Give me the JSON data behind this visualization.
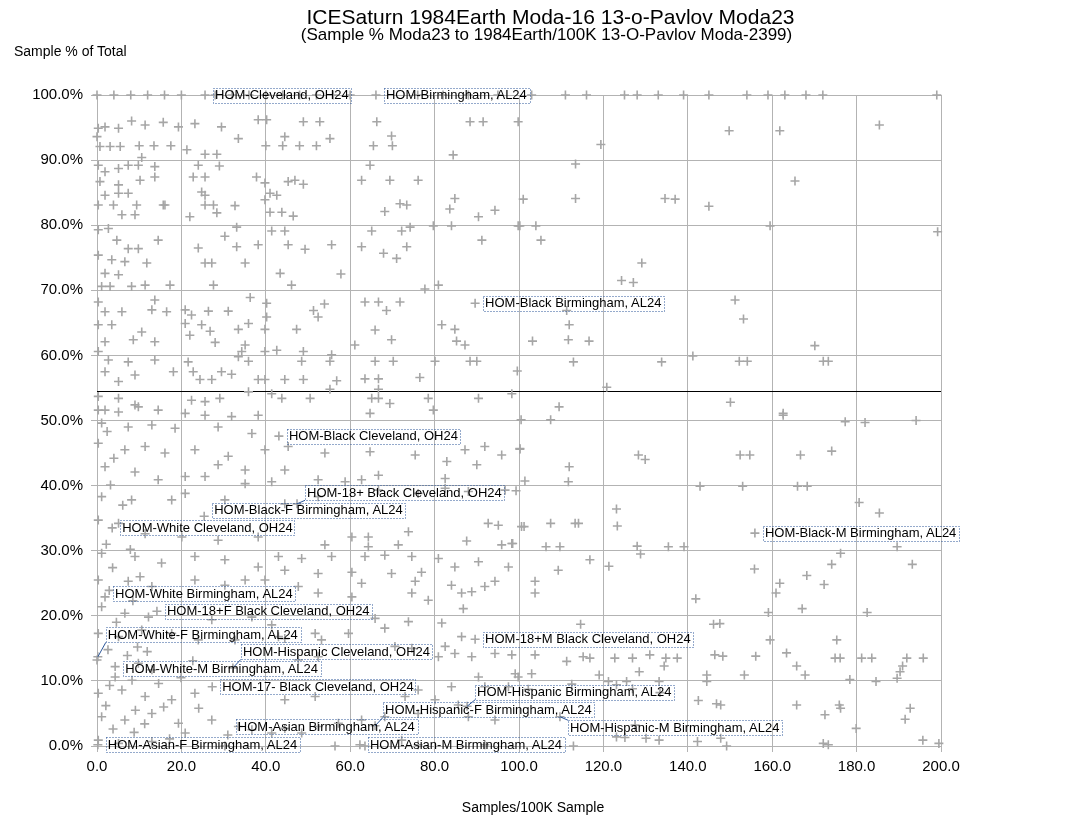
{
  "chart_data": {
    "type": "scatter",
    "title": "ICESaturn 1984Earth Moda-16 13-o-Pavlov Moda23",
    "subtitle": "(Sample % Moda23 to 1984Earth/100K 13-O-Pavlov Moda-2399)",
    "xlabel": "Samples/100K Sample",
    "ylabel": "Sample % of Total",
    "xlim": [
      0,
      200
    ],
    "ylim": [
      0,
      100
    ],
    "xticks": [
      {
        "value": 0,
        "label": "0.0"
      },
      {
        "value": 20,
        "label": "20.0"
      },
      {
        "value": 40,
        "label": "40.0"
      },
      {
        "value": 60,
        "label": "60.0"
      },
      {
        "value": 80,
        "label": "80.0"
      },
      {
        "value": 100,
        "label": "100.0"
      },
      {
        "value": 120,
        "label": "120.0"
      },
      {
        "value": 140,
        "label": "140.0"
      },
      {
        "value": 160,
        "label": "160.0"
      },
      {
        "value": 180,
        "label": "180.0"
      },
      {
        "value": 200,
        "label": "200.0"
      }
    ],
    "yticks": [
      {
        "value": 0,
        "label": "0.0%"
      },
      {
        "value": 10,
        "label": "10.0%"
      },
      {
        "value": 20,
        "label": "20.0%"
      },
      {
        "value": 30,
        "label": "30.0%"
      },
      {
        "value": 40,
        "label": "40.0%"
      },
      {
        "value": 50,
        "label": "50.0%"
      },
      {
        "value": 60,
        "label": "60.0%"
      },
      {
        "value": 70,
        "label": "70.0%"
      },
      {
        "value": 80,
        "label": "80.0%"
      },
      {
        "value": 90,
        "label": "90.0%"
      },
      {
        "value": 100,
        "label": "100.0%"
      }
    ],
    "grid": true,
    "marker": "cross",
    "color": "#a6a6a6",
    "ref_lines": [
      {
        "axis": "y",
        "value": 54.5,
        "color": "#000000"
      }
    ],
    "annotations": [
      {
        "text": "HOM-Cleveland, OH24",
        "x": 25.6,
        "y": 100
      },
      {
        "text": "HOM-Birmingham, AL24",
        "x": 66.1,
        "y": 100
      },
      {
        "text": "HOM-Black Birmingham, AL24",
        "x": 89.6,
        "y": 68.0
      },
      {
        "text": "HOM-Black Cleveland, OH24",
        "x": 43.1,
        "y": 47.6
      },
      {
        "text": "HOM-18+ Black Cleveland, OH24",
        "x": 47.4,
        "y": 37.2
      },
      {
        "text": "HOM-Black-F Birmingham, AL24",
        "x": 25.4,
        "y": 35.3
      },
      {
        "text": "HOM-White Cleveland, OH24",
        "x": 3.6,
        "y": 33.5
      },
      {
        "text": "HOM-Black-M Birmingham, AL24",
        "x": 155.9,
        "y": 32.7
      },
      {
        "text": "HOM-White Birmingham, AL24",
        "x": 1.9,
        "y": 22.9
      },
      {
        "text": "HOM-18+F Black Cleveland, OH24",
        "x": 14.2,
        "y": 20.7
      },
      {
        "text": "HOM-18+M Black Cleveland, OH24",
        "x": 89.6,
        "y": 16.4
      },
      {
        "text": "HOM-White-F Birmingham, AL24",
        "x": 0.2,
        "y": 13.7
      },
      {
        "text": "HOM-Hispanic Cleveland, OH24",
        "x": 32.2,
        "y": 12.0
      },
      {
        "text": "HOM-White-M Birmingham, AL24",
        "x": 4.3,
        "y": 10.6
      },
      {
        "text": "HOM-17- Black Cleveland, OH24",
        "x": 27.3,
        "y": 9.1
      },
      {
        "text": "HOM-Hispanic Birmingham, AL24",
        "x": 87.7,
        "y": 6.1
      },
      {
        "text": "HOM-Hispanic-M Birmingham, AL24",
        "x": 109.7,
        "y": 4.5
      },
      {
        "text": "HOM-Hispanic-F Birmingham, AL24",
        "x": 65.9,
        "y": 3.1
      },
      {
        "text": "HOM-Asian Birmingham, AL24",
        "x": 31.0,
        "y": 1.7
      },
      {
        "text": "HOM-Asian-F Birmingham, AL24",
        "x": 0.2,
        "y": 0.2
      },
      {
        "text": "HOM-Asian-M Birmingham, AL24",
        "x": 62.3,
        "y": 0.2
      }
    ],
    "x": [
      0,
      4,
      8,
      12,
      16,
      20,
      25.6,
      28,
      32,
      36,
      40,
      44,
      48,
      52,
      56,
      60,
      66.1,
      76,
      82,
      88,
      95,
      103,
      111,
      116,
      125,
      128,
      133,
      139,
      145,
      154,
      159,
      163,
      168,
      172,
      199,
      8.2,
      11.4,
      15.7,
      23.2,
      29.5,
      38.2,
      40.2,
      48.9,
      52.8,
      66.3,
      88.4,
      91.5,
      33.5,
      44.5,
      69.8,
      55.2,
      40.0,
      44.0,
      48.0,
      52.0,
      65.5,
      70.0,
      21.3,
      25.6,
      28.4,
      84.4,
      10.6,
      19.3,
      24.0,
      29.0,
      22.8,
      25.6,
      37.8,
      45.3,
      46.9,
      48.9,
      39.8,
      24.8,
      25.6,
      41.0,
      42.6,
      39.8,
      15.7,
      25.6,
      27.6,
      32.7,
      41.0,
      43.8,
      46.5,
      28.4,
      22.0,
      33.1,
      41.4,
      44.5,
      30.3,
      24.0,
      33.1,
      38.2,
      45.3,
      49.3,
      55.6,
      25.6,
      27.2,
      35.1,
      43.4,
      57.8,
      27.6,
      46.1,
      20.9,
      22.4,
      26.4,
      31.1,
      36.3,
      40.2,
      40.2,
      51.3,
      52.4,
      53.9,
      20.9,
      24.8,
      26.8,
      33.5,
      35.9,
      39.8,
      47.3,
      22.0,
      28.0,
      35.1,
      34.3,
      39.8,
      42.6,
      48.9,
      55.6,
      21.6,
      33.5,
      35.9,
      48.5,
      55.2,
      18.1,
      22.8,
      29.5,
      31.9,
      38.2,
      39.8,
      44.5,
      48.9,
      56.8,
      24.4,
      27.2,
      55.2,
      65.1,
      78.5,
      90.4,
      98.3,
      22.4,
      25.6,
      29.1,
      35.9,
      41.4,
      43.8,
      50.5,
      64.7,
      66.7,
      69.4,
      79.7,
      62.7,
      69.4,
      76.1,
      64.7,
      68.2,
      71.8,
      73.4,
      84.8,
      83.6,
      90.4,
      94.3,
      65.1,
      72.2,
      74.2,
      79.7,
      84.0,
      99.8,
      62.7,
      67.9,
      71.0,
      73.4,
      91.2,
      77.7,
      80.9,
      63.5,
      66.7,
      71.8,
      68.6,
      65.9,
      69.8,
      61.1,
      81.7,
      84.8,
      85.2,
      87.2,
      65.9,
      70.2,
      76.5,
      80.1,
      88.4,
      90.0,
      63.5,
      66.7,
      66.7,
      89.6,
      0.3,
      1.9,
      5.1,
      0,
      0.7,
      3.1,
      5.5,
      0.3,
      1.9,
      5.1,
      7.4,
      9.8,
      13.7,
      13.7,
      10.2,
      5.1,
      0.7,
      1.9,
      5.1,
      7.4,
      0.3,
      3.9,
      9.4,
      5.9,
      9.0,
      16.1,
      0.3,
      2.7,
      4.7,
      7.4,
      9.8,
      14.5,
      0.3,
      3.5,
      6.6,
      11.8,
      1.9,
      5.1,
      1.1,
      3.1,
      8.2,
      11.4,
      17.3,
      0.3,
      1.9,
      5.9,
      13.7,
      13.0,
      16.5,
      0.3,
      3.5,
      10.6,
      8.6,
      13.7,
      1.9,
      0.3,
      2.7,
      7.4,
      13.7,
      1.9,
      5.1,
      9.0,
      0.3,
      5.1,
      1.9,
      9.0,
      10.0,
      13.5,
      17.5,
      99.8,
      119.4,
      149.8,
      161.8,
      185.4,
      113.4,
      165.4,
      101.0,
      113.4,
      134.6,
      137.0,
      145.0,
      100.2,
      104.0,
      105.2,
      159.5,
      199.2,
      129.1,
      124.3,
      127.1,
      151.2,
      153.2,
      170.1,
      111.3,
      111.9,
      103.2,
      111.7,
      116.6,
      112.9,
      133.8,
      141.2,
      152.2,
      154.1,
      172.1,
      173.3,
      99.6,
      120.8,
      109.5,
      150.1,
      162.6,
      45.3,
      54.0,
      64.7,
      75.4,
      82.9,
      87.2,
      90.0,
      91.9,
      95.9,
      100.2,
      35.1,
      44.5,
      52.4,
      58.8,
      62.7,
      66.7,
      82.5,
      28.7,
      20.9,
      52.4,
      66.7,
      76.1,
      82.5,
      88.0,
      96.7,
      92.7,
      95.1,
      100.6,
      73.8,
      60.4,
      64.3,
      87.6,
      54.0,
      64.3,
      71.4,
      95.9,
      98.3,
      48.5,
      55.6,
      63.5,
      68.2,
      74.6,
      80.9,
      84.8,
      90.4,
      97.5,
      44.5,
      52.4,
      60.4,
      69.8,
      76.9,
      35.1,
      47.7,
      62.7,
      75.4,
      84.0,
      94.3,
      91.9,
      88.8,
      86.4,
      52.4,
      60.4,
      74.6,
      78.5,
      86.8,
      65.9,
      73.8,
      81.7,
      68.2,
      59.6,
      51.7,
      53.2,
      44.5,
      86.4,
      82.5,
      84.8,
      74.6,
      70.6,
      80.9,
      88.8,
      94.3,
      98.3,
      90.4,
      99.8,
      84.0,
      91.9,
      97.5,
      76.1,
      73.0,
      80.1,
      85.6,
      88.0,
      94.3,
      76.1,
      68.2,
      62.7,
      57.2,
      52.4,
      44.5,
      36.7,
      63.5,
      72.2,
      76.1,
      91.9,
      89.6,
      87.7,
      65.9,
      62.3,
      31.0,
      0.2,
      0.2,
      32.2,
      4.3,
      27.3,
      14.2,
      1.9,
      3.6,
      25.4,
      47.4,
      43.1,
      155.9,
      109.7,
      0.3,
      5.1,
      9.8,
      14.5,
      20.9,
      25.6,
      31.9,
      38.2,
      1.1,
      7.4,
      13.0,
      18.5,
      28.7,
      36.7,
      0.3,
      6.6,
      11.4,
      16.1,
      23.2,
      31.1,
      39.8,
      1.9,
      9.0,
      14.5,
      25.6,
      35.1,
      41.4,
      1.1,
      8.2,
      17.7,
      20.9,
      30.3,
      44.5,
      0.3,
      5.1,
      11.4,
      20.1,
      28.7,
      38.2,
      1.1,
      9.0,
      15.3,
      23.2,
      30.3,
      38.2,
      43.0,
      0.3,
      7.4,
      13.0,
      23.2,
      30.3,
      39.8,
      1.1,
      6.6,
      12.2,
      27.2,
      36.7,
      41.4,
      0.3,
      5.1,
      10.6,
      17.7,
      24.0,
      32.7,
      43.0,
      0,
      4.3,
      9.8,
      13.0,
      47.7,
      52.4,
      0.3,
      5.9,
      11.4,
      17.7,
      23.2,
      44.5,
      51.7,
      1.1,
      6.6,
      13.0,
      19.3,
      27.2,
      33.5,
      0.3,
      5.1,
      13.0,
      20.9,
      30.3,
      41.4,
      48.5,
      56.4,
      2.4,
      4.0,
      3.2,
      6.1,
      2.2,
      7.9,
      3.7,
      10.2,
      2.9,
      8.5,
      4.6,
      9.6,
      2.6,
      7.2,
      11.9,
      3.0,
      8.3,
      14.6,
      2.1,
      9.1,
      15.8,
      3.8,
      8.8,
      11.3,
      17.2,
      24.1,
      19.9,
      22.7,
      107.5,
      100.5,
      162.6,
      177.3,
      182.0,
      194.1,
      100.2,
      128.3,
      129.9,
      152.4,
      154.7,
      166.7,
      174.1,
      111.9,
      101.4,
      111.7,
      142.9,
      153.0,
      166.0,
      168.3,
      99.3,
      180.6,
      185.4,
      123.1,
      123.3,
      101.2,
      107.5,
      113.3,
      114.1,
      98.5,
      106.4,
      109.7,
      128.0,
      128.8,
      135.4,
      139.1,
      189.6,
      176.2,
      116.8,
      121.3,
      109.3,
      155.8,
      174.1,
      193.2,
      168.2,
      103.8,
      103.8,
      161.8,
      160.9,
      172.3,
      141.9,
      167.1,
      159.1,
      182.5,
      114.6,
      146.1,
      147.6,
      159.5,
      175.3,
      103.8,
      111.3,
      115.2,
      116.8,
      122.7,
      126.9,
      131.0,
      134.8,
      137.5,
      146.4,
      148.3,
      156.1,
      163.4,
      174.9,
      176.1,
      181.2,
      183.6,
      191.9,
      195.8,
      165.8,
      167.8,
      190.9,
      190.3,
      189.6,
      134.4,
      99.1,
      103.0,
      119.0,
      128.5,
      144.5,
      144.5,
      153.4,
      178.4,
      184.6,
      102.2,
      112.5,
      121.2,
      123.1,
      125.5,
      126.9,
      133.4,
      133.2,
      142.5,
      146.8,
      147.8,
      165.8,
      175.9,
      176.2,
      192.7,
      191.5,
      172.5,
      127.5,
      179.9,
      123.1,
      125.1,
      130.1,
      133.2,
      142.3,
      147.8,
      149.2,
      172.1,
      173.3,
      195.7,
      199.5,
      112.9
    ],
    "values": [
      100,
      100,
      100,
      100,
      100,
      100,
      100,
      100,
      100,
      100,
      100,
      100,
      100,
      100,
      100,
      100,
      100,
      100,
      100,
      100,
      100,
      100,
      100,
      100,
      100,
      100,
      100,
      100,
      100,
      100,
      100,
      100,
      100,
      100,
      100,
      96.0,
      95.4,
      95.8,
      95.6,
      95.1,
      96.2,
      96.2,
      95.9,
      95.9,
      95.9,
      95.9,
      95.9,
      93.3,
      93.6,
      93.7,
      93.3,
      92.2,
      92.2,
      92.2,
      92.2,
      92.2,
      92.2,
      91.6,
      90.9,
      90.9,
      90.8,
      90.4,
      95.1,
      89.2,
      89.1,
      87.4,
      87.4,
      87.4,
      86.7,
      86.9,
      86.3,
      86.5,
      85.1,
      84.6,
      84.9,
      84.6,
      83.9,
      83.1,
      83.1,
      83.1,
      83.0,
      82.0,
      82.0,
      81.4,
      81.9,
      81.3,
      79.7,
      79.1,
      79.1,
      78.3,
      76.5,
      76.7,
      77.0,
      77.0,
      76.3,
      77.0,
      74.2,
      74.2,
      74.2,
      72.6,
      72.5,
      70.8,
      70.8,
      67.0,
      66.2,
      66.8,
      66.8,
      68.9,
      68.0,
      65.9,
      66.9,
      65.9,
      67.9,
      64.9,
      64.7,
      63.7,
      64.0,
      64.9,
      64.0,
      64.0,
      63.1,
      62.0,
      61.6,
      60.6,
      60.6,
      60.8,
      60.6,
      60.1,
      59.0,
      59.8,
      59.1,
      59.1,
      59.1,
      57.5,
      57.5,
      57.5,
      57.1,
      56.3,
      56.3,
      56.3,
      56.3,
      56.1,
      56.3,
      56.3,
      54.8,
      53.4,
      53.4,
      53.4,
      54.1,
      53.1,
      52.9,
      53.4,
      54.4,
      54.1,
      53.4,
      53.4,
      51.1,
      53.4,
      52.6,
      51.6,
      86.9,
      86.9,
      86.9,
      89.2,
      82.1,
      83.3,
      83.1,
      84.1,
      82.5,
      81.3,
      82.3,
      79.1,
      79.1,
      79.7,
      79.9,
      79.9,
      79.9,
      76.7,
      75.7,
      74.9,
      76.7,
      77.7,
      70.2,
      70.8,
      68.2,
      68.2,
      68.2,
      66.9,
      63.9,
      62.4,
      61.6,
      64.7,
      64.0,
      62.2,
      61.6,
      59.1,
      59.1,
      56.6,
      59.1,
      59.1,
      59.1,
      56.4,
      56.4,
      54.8,
      68.0,
      94.9,
      95.1,
      94.9,
      93.6,
      92.1,
      92.1,
      92.1,
      89.2,
      88.2,
      88.7,
      89.2,
      89.2,
      89.0,
      87.4,
      86.9,
      86.2,
      86.7,
      84.6,
      84.9,
      84.9,
      83.1,
      83.1,
      83.1,
      81.6,
      81.6,
      83.1,
      79.3,
      79.5,
      77.7,
      76.4,
      76.4,
      77.7,
      75.4,
      74.7,
      74.4,
      74.2,
      72.6,
      72.4,
      70.6,
      70.6,
      70.6,
      70.8,
      70.8,
      68.2,
      66.7,
      66.7,
      68.5,
      67.0,
      66.7,
      64.7,
      64.7,
      63.6,
      62.4,
      62.1,
      62.1,
      60.6,
      59.3,
      59.0,
      59.3,
      57.5,
      56.0,
      57.0,
      53.7,
      53.4,
      51.6,
      52.4,
      92.2,
      92.2,
      92.2,
      95.9,
      92.4,
      94.5,
      94.5,
      95.4,
      89.4,
      86.8,
      84.0,
      84.1,
      84.1,
      84.0,
      82.9,
      79.9,
      79.9,
      77.7,
      79.9,
      79.0,
      74.2,
      71.5,
      71.2,
      68.5,
      65.6,
      61.5,
      66.9,
      64.7,
      62.2,
      62.4,
      62.2,
      59.0,
      59.0,
      59.9,
      59.1,
      59.1,
      59.1,
      59.1,
      57.6,
      55.1,
      52.1,
      52.8,
      51.1,
      46.0,
      45.0,
      45.2,
      44.7,
      43.7,
      45.5,
      43.2,
      46.0,
      44.7,
      45.7,
      42.4,
      42.4,
      40.9,
      40.6,
      40.9,
      41.6,
      41.1,
      43.2,
      41.4,
      38.3,
      39.3,
      38.8,
      39.6,
      39.1,
      39.3,
      34.2,
      33.9,
      33.7,
      32.9,
      32.1,
      32.1,
      31.5,
      30.9,
      30.6,
      30.9,
      30.9,
      31.1,
      28.8,
      29.1,
      29.1,
      29.3,
      29.1,
      28.8,
      27.5,
      28.3,
      27.5,
      27.0,
      26.5,
      26.7,
      26.5,
      26.7,
      25.5,
      24.5,
      25.0,
      25.3,
      24.7,
      25.3,
      24.5,
      23.7,
      23.5,
      23.5,
      22.9,
      23.5,
      22.4,
      21.1,
      19.6,
      19.1,
      18.9,
      18.1,
      17.3,
      17.3,
      16.3,
      16.5,
      16.8,
      15.3,
      14.2,
      15.0,
      15.3,
      13.7,
      13.7,
      14.2,
      14.0,
      10.6,
      10.6,
      9.1,
      9.1,
      9.1,
      8.6,
      7.6,
      7.1,
      6.3,
      4.5,
      4.0,
      5.0,
      4.5,
      4.0,
      3.5,
      3.0,
      2.7,
      2.5,
      0,
      0.9,
      0.2,
      0.2,
      16.4,
      6.1,
      3.1,
      0.2,
      1.7,
      0.2,
      13.7,
      12.0,
      10.6,
      9.1,
      20.7,
      22.9,
      33.5,
      35.3,
      37.2,
      47.6,
      32.7,
      4.5,
      51.6,
      51.3,
      52.1,
      51.6,
      51.1,
      50.8,
      50.6,
      50.8,
      49.6,
      49.0,
      49.3,
      48.8,
      49.0,
      48.0,
      46.5,
      45.5,
      46.0,
      45.0,
      45.5,
      44.5,
      45.5,
      42.9,
      42.1,
      40.9,
      41.4,
      40.3,
      40.6,
      38.3,
      37.8,
      37.8,
      38.8,
      37.8,
      37.2,
      34.7,
      34.2,
      32.6,
      32.1,
      31.6,
      32.1,
      29.6,
      29.1,
      28.1,
      29.1,
      28.6,
      27.5,
      29.1,
      25.5,
      25.3,
      24.5,
      25.5,
      24.7,
      25.5,
      21.4,
      20.4,
      19.8,
      19.4,
      19.8,
      18.6,
      17.3,
      16.8,
      17.8,
      17.3,
      16.3,
      16.3,
      16.8,
      13.2,
      12.2,
      12.7,
      11.7,
      13.2,
      13.7,
      8.1,
      8.6,
      7.6,
      7.1,
      8.1,
      7.1,
      7.6,
      4.5,
      4.0,
      5.0,
      3.5,
      4.0,
      3.0,
      0.9,
      0.4,
      0.7,
      2.0,
      0,
      2.0,
      2.0,
      0,
      48.3,
      44.2,
      40.1,
      37.0,
      31.0,
      30.2,
      27.4,
      26.0,
      23.9,
      22.3,
      19.0,
      15.2,
      14.8,
      13.9,
      14.5,
      9.3,
      10.1,
      9.6,
      6.2,
      5.5,
      6.0,
      2.6,
      2.1,
      3.4,
      1.1,
      5.8,
      10.5,
      13.1,
      50.1,
      50.1,
      50.8,
      49.8,
      49.7,
      50.0,
      45.6,
      44.7,
      44.0,
      44.7,
      44.7,
      44.7,
      45.3,
      42.9,
      40.7,
      40.6,
      39.9,
      39.9,
      39.9,
      39.9,
      39.2,
      37.4,
      35.8,
      36.4,
      33.8,
      33.7,
      34.2,
      34.2,
      34.2,
      31.1,
      30.6,
      30.6,
      30.7,
      29.5,
      30.6,
      30.6,
      30.6,
      29.6,
      28.6,
      27.6,
      27.0,
      27.2,
      27.9,
      27.9,
      26.2,
      25.3,
      23.5,
      25.0,
      23.5,
      24.8,
      22.6,
      21.1,
      20.5,
      20.5,
      18.7,
      18.7,
      18.8,
      16.3,
      16.3,
      14.0,
      13.0,
      13.7,
      13.5,
      13.5,
      13.5,
      14.0,
      13.5,
      13.5,
      14.0,
      13.8,
      13.8,
      14.3,
      13.5,
      13.5,
      13.5,
      13.5,
      13.5,
      13.5,
      12.3,
      10.9,
      12.3,
      11.4,
      10.4,
      12.3,
      11.1,
      11.1,
      10.9,
      11.4,
      10.9,
      9.9,
      10.9,
      10.2,
      9.9,
      8.7,
      9.5,
      9.9,
      9.4,
      9.9,
      8.8,
      8.2,
      9.9,
      7.0,
      6.5,
      6.3,
      6.3,
      6.3,
      5.8,
      5.8,
      4.1,
      4.8,
      3.2,
      2.7,
      1.4,
      1.3,
      1.2,
      0.9,
      0.7,
      1.2,
      0,
      0.4,
      0.2,
      0.9,
      0.4,
      0
    ]
  }
}
